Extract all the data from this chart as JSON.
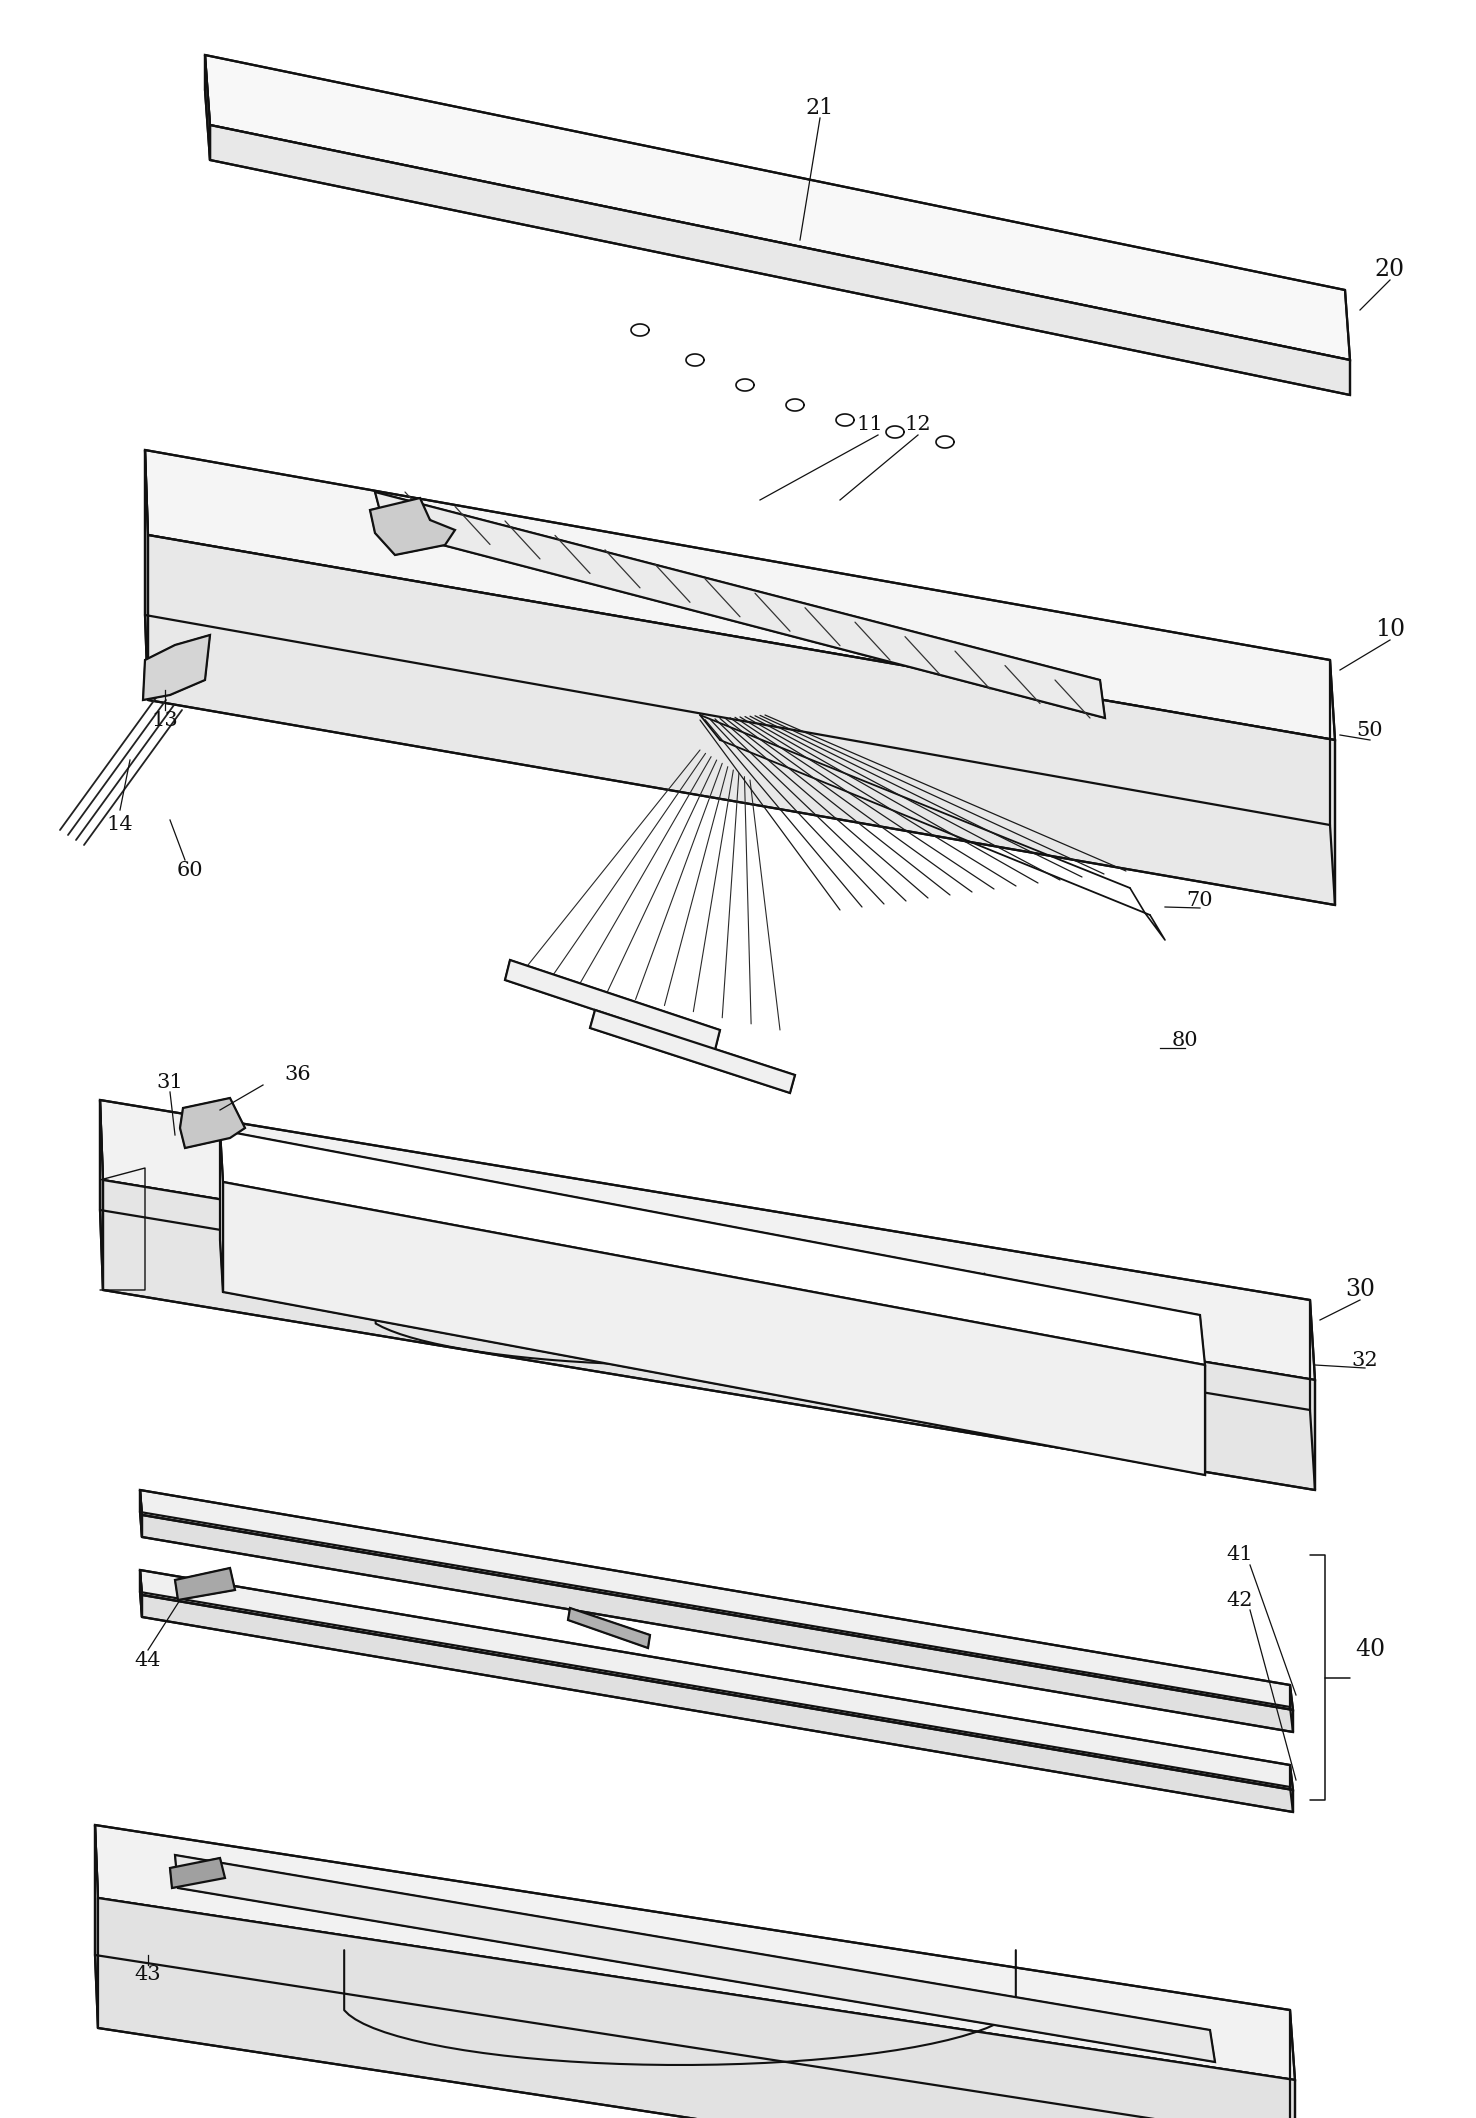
{
  "bg_color": "#ffffff",
  "line_color": "#111111",
  "lw": 1.6,
  "figsize": [
    14.76,
    21.18
  ],
  "dpi": 100
}
